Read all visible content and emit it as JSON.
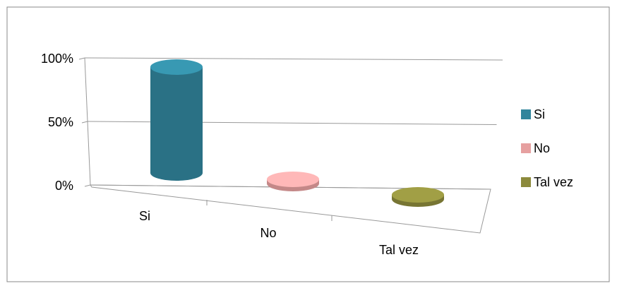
{
  "chart_data": {
    "type": "bar3d",
    "categories": [
      "Si",
      "No",
      "Tal vez"
    ],
    "series": [
      {
        "name": "Si",
        "color": "#31859c",
        "values": [
          90,
          null,
          null
        ]
      },
      {
        "name": "No",
        "color": "#e6a0a0",
        "values": [
          null,
          0,
          null
        ]
      },
      {
        "name": "Tal vez",
        "color": "#8c8a3c",
        "values": [
          null,
          null,
          0
        ]
      }
    ],
    "ylim": [
      0,
      100
    ],
    "yticks": [
      {
        "value": 0,
        "label": "0%"
      },
      {
        "value": 50,
        "label": "50%"
      },
      {
        "value": 100,
        "label": "100%"
      }
    ],
    "grid": true,
    "legend": "right"
  }
}
